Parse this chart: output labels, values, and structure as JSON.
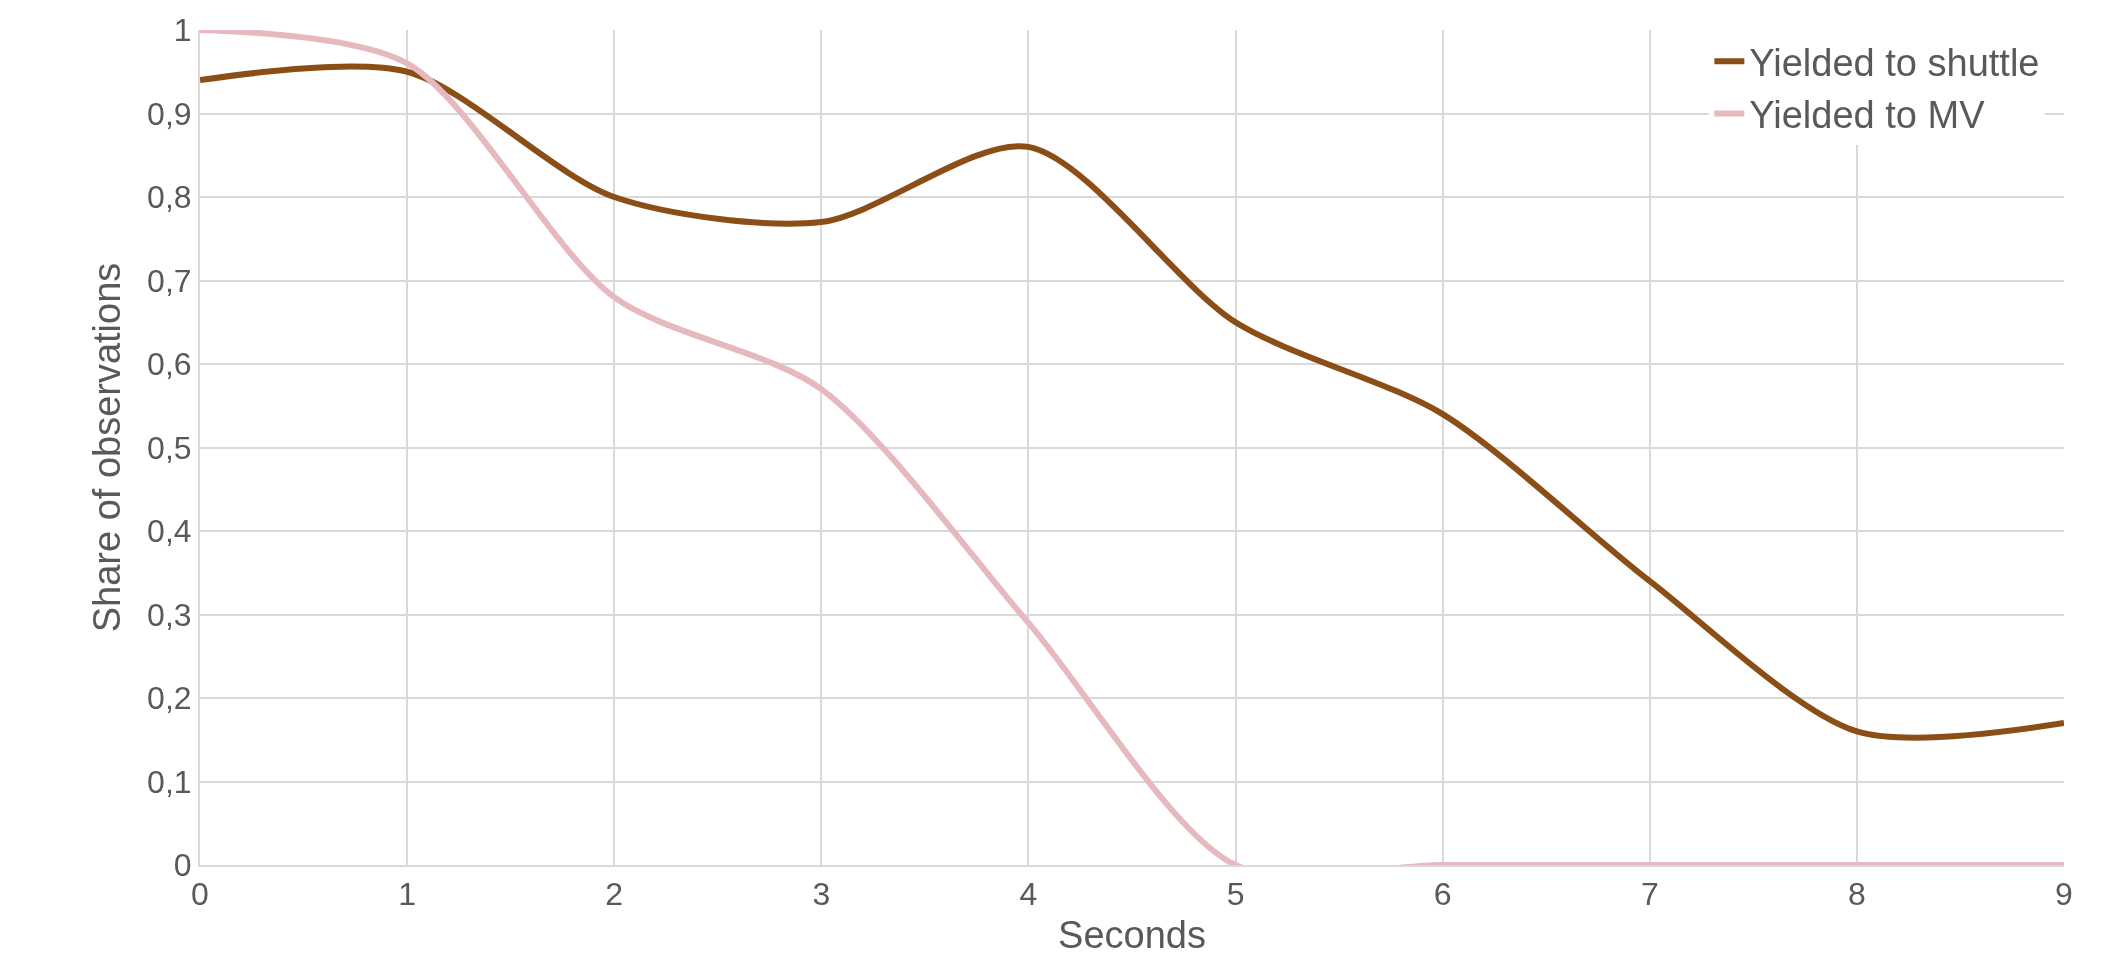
{
  "chart_data": {
    "type": "line",
    "xlabel": "Seconds",
    "ylabel": "Share of observations",
    "x": [
      0,
      1,
      2,
      3,
      4,
      5,
      6,
      7,
      8,
      9
    ],
    "series": [
      {
        "name": "Yielded to shuttle",
        "color": "#8b4e17",
        "values": [
          0.94,
          0.95,
          0.8,
          0.77,
          0.86,
          0.65,
          0.54,
          0.34,
          0.16,
          0.17
        ]
      },
      {
        "name": "Yielded to MV",
        "color": "#e6b9bf",
        "values": [
          1.0,
          0.96,
          0.68,
          0.57,
          0.29,
          0.0,
          0.0,
          0.0,
          0.0,
          0.0
        ]
      }
    ],
    "xlim": [
      0,
      9
    ],
    "xticks": [
      0,
      1,
      2,
      3,
      4,
      5,
      6,
      7,
      8,
      9
    ],
    "ylim": [
      0,
      1
    ],
    "yticks": [
      0,
      {
        "value": 0.1,
        "label": "0,1"
      },
      {
        "value": 0.2,
        "label": "0,2"
      },
      {
        "value": 0.3,
        "label": "0,3"
      },
      {
        "value": 0.4,
        "label": "0,4"
      },
      {
        "value": 0.5,
        "label": "0,5"
      },
      {
        "value": 0.6,
        "label": "0,6"
      },
      {
        "value": 0.7,
        "label": "0,7"
      },
      {
        "value": 0.8,
        "label": "0,8"
      },
      {
        "value": 0.9,
        "label": "0,9"
      },
      1
    ],
    "grid": true,
    "legend": "top right",
    "marker": "none",
    "line_style": "solid"
  }
}
